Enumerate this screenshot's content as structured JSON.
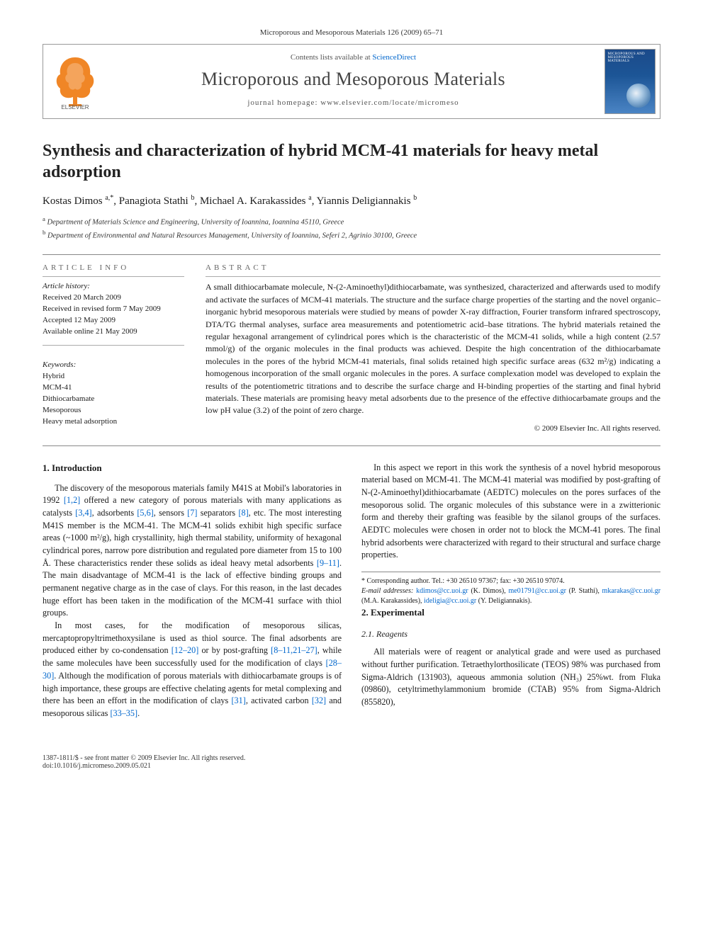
{
  "citation": "Microporous and Mesoporous Materials 126 (2009) 65–71",
  "header": {
    "contents_prefix": "Contents lists available at ",
    "contents_link": "ScienceDirect",
    "journal": "Microporous and Mesoporous Materials",
    "homepage_prefix": "journal homepage: ",
    "homepage_url": "www.elsevier.com/locate/micromeso",
    "publisher": "ELSEVIER",
    "cover_label": "MICROPOROUS AND MESOPOROUS MATERIALS"
  },
  "title": "Synthesis and characterization of hybrid MCM-41 materials for heavy metal adsorption",
  "authors_html": "Kostas Dimos <sup>a,*</sup>, Panagiota Stathi <sup>b</sup>, Michael A. Karakassides <sup>a</sup>, Yiannis Deligiannakis <sup>b</sup>",
  "affiliations": {
    "a": "Department of Materials Science and Engineering, University of Ioannina, Ioannina 45110, Greece",
    "b": "Department of Environmental and Natural Resources Management, University of Ioannina, Seferi 2, Agrinio 30100, Greece"
  },
  "labels": {
    "article_info": "ARTICLE INFO",
    "abstract": "ABSTRACT",
    "history": "Article history:",
    "keywords": "Keywords:"
  },
  "history": [
    "Received 20 March 2009",
    "Received in revised form 7 May 2009",
    "Accepted 12 May 2009",
    "Available online 21 May 2009"
  ],
  "keywords": [
    "Hybrid",
    "MCM-41",
    "Dithiocarbamate",
    "Mesoporous",
    "Heavy metal adsorption"
  ],
  "abstract": "A small dithiocarbamate molecule, N-(2-Aminoethyl)dithiocarbamate, was synthesized, characterized and afterwards used to modify and activate the surfaces of MCM-41 materials. The structure and the surface charge properties of the starting and the novel organic–inorganic hybrid mesoporous materials were studied by means of powder X-ray diffraction, Fourier transform infrared spectroscopy, DTA/TG thermal analyses, surface area measurements and potentiometric acid–base titrations. The hybrid materials retained the regular hexagonal arrangement of cylindrical pores which is the characteristic of the MCM-41 solids, while a high content (2.57 mmol/g) of the organic molecules in the final products was achieved. Despite the high concentration of the dithiocarbamate molecules in the pores of the hybrid MCM-41 materials, final solids retained high specific surface areas (632 m²/g) indicating a homogenous incorporation of the small organic molecules in the pores. A surface complexation model was developed to explain the results of the potentiometric titrations and to describe the surface charge and H-binding properties of the starting and final hybrid materials. These materials are promising heavy metal adsorbents due to the presence of the effective dithiocarbamate groups and the low pH value (3.2) of the point of zero charge.",
  "copyright": "© 2009 Elsevier Inc. All rights reserved.",
  "sections": {
    "intro_heading": "1. Introduction",
    "exp_heading": "2. Experimental",
    "reagents_heading": "2.1. Reagents"
  },
  "body": {
    "p1a": "The discovery of the mesoporous materials family M41S at Mobil's laboratories in 1992 ",
    "c1": "[1,2]",
    "p1b": " offered a new category of porous materials with many applications as catalysts ",
    "c2": "[3,4]",
    "p1c": ", adsorbents ",
    "c3": "[5,6]",
    "p1d": ", sensors ",
    "c4": "[7]",
    "p1e": " separators ",
    "c5": "[8]",
    "p1f": ", etc. The most interesting M41S member is the MCM-41. The MCM-41 solids exhibit high specific surface areas (~1000 m²/g), high crystallinity, high thermal stability, uniformity of hexagonal cylindrical pores, narrow pore distribution and regulated pore diameter from 15 to 100 Å. These characteristics render these solids as ideal heavy metal adsorbents ",
    "c6": "[9–11]",
    "p1g": ". The main disadvantage of MCM-41 is the lack of effective binding groups and permanent negative charge as in the case of clays. For this reason, in the last decades huge effort has been taken in the modification of the MCM-41 surface with thiol groups.",
    "p2a": "In most cases, for the modification of mesoporous silicas, mercaptopropyltrimethoxysilane is used as thiol source. The final adsorbents are produced either by co-condensation ",
    "c7": "[12–20]",
    "p2b": " or by post-grafting ",
    "c8": "[8–11,21–27]",
    "p2c": ", while the same molecules have been successfully used for the modification of clays ",
    "c9": "[28–30]",
    "p2d": ". Although the modification of porous materials with dithiocarbamate groups ",
    "p3a": "is of high importance, these groups are effective chelating agents for metal complexing and there has been an effort in the modification of clays ",
    "c10": "[31]",
    "p3b": ", activated carbon ",
    "c11": "[32]",
    "p3c": " and mesoporous silicas ",
    "c12": "[33–35]",
    "p3d": ".",
    "p4": "In this aspect we report in this work the synthesis of a novel hybrid mesoporous material based on MCM-41. The MCM-41 material was modified by post-grafting of N-(2-Aminoethyl)dithiocarbamate (AEDTC) molecules on the pores surfaces of the mesoporous solid. The organic molecules of this substance were in a zwitterionic form and thereby their grafting was feasible by the silanol groups of the surfaces. AEDTC molecules were chosen in order not to block the MCM-41 pores. The final hybrid adsorbents were characterized with regard to their structural and surface charge properties.",
    "p5": "All materials were of reagent or analytical grade and were used as purchased without further purification. Tetraethylorthosilicate (TEOS) 98% was purchased from Sigma-Aldrich (131903), aqueous ammonia solution (NH₃) 25%wt. from Fluka (09860), cetyltrimethylammonium bromide (CTAB) 95% from Sigma-Aldrich (855820),"
  },
  "footnotes": {
    "corr": "* Corresponding author. Tel.: +30 26510 97367; fax: +30 26510 97074.",
    "email_label": "E-mail addresses:",
    "emails": [
      {
        "addr": "kdimos@cc.uoi.gr",
        "who": "(K. Dimos)"
      },
      {
        "addr": "me01791@cc.uoi.gr",
        "who": "(P. Stathi)"
      },
      {
        "addr": "mkarakas@cc.uoi.gr",
        "who": "(M.A. Karakassides)"
      },
      {
        "addr": "ideligia@cc.uoi.gr",
        "who": "(Y. Deligiannakis)"
      }
    ]
  },
  "footer": {
    "left1": "1387-1811/$ - see front matter © 2009 Elsevier Inc. All rights reserved.",
    "left2": "doi:10.1016/j.micromeso.2009.05.021"
  },
  "colors": {
    "link": "#0066cc",
    "rule": "#888888",
    "text": "#1a1a1a",
    "muted": "#666666",
    "cover_top": "#1b4a8a",
    "cover_bottom": "#4a84c4",
    "elsevier_orange": "#ef7f1a",
    "elsevier_text": "#555555"
  }
}
